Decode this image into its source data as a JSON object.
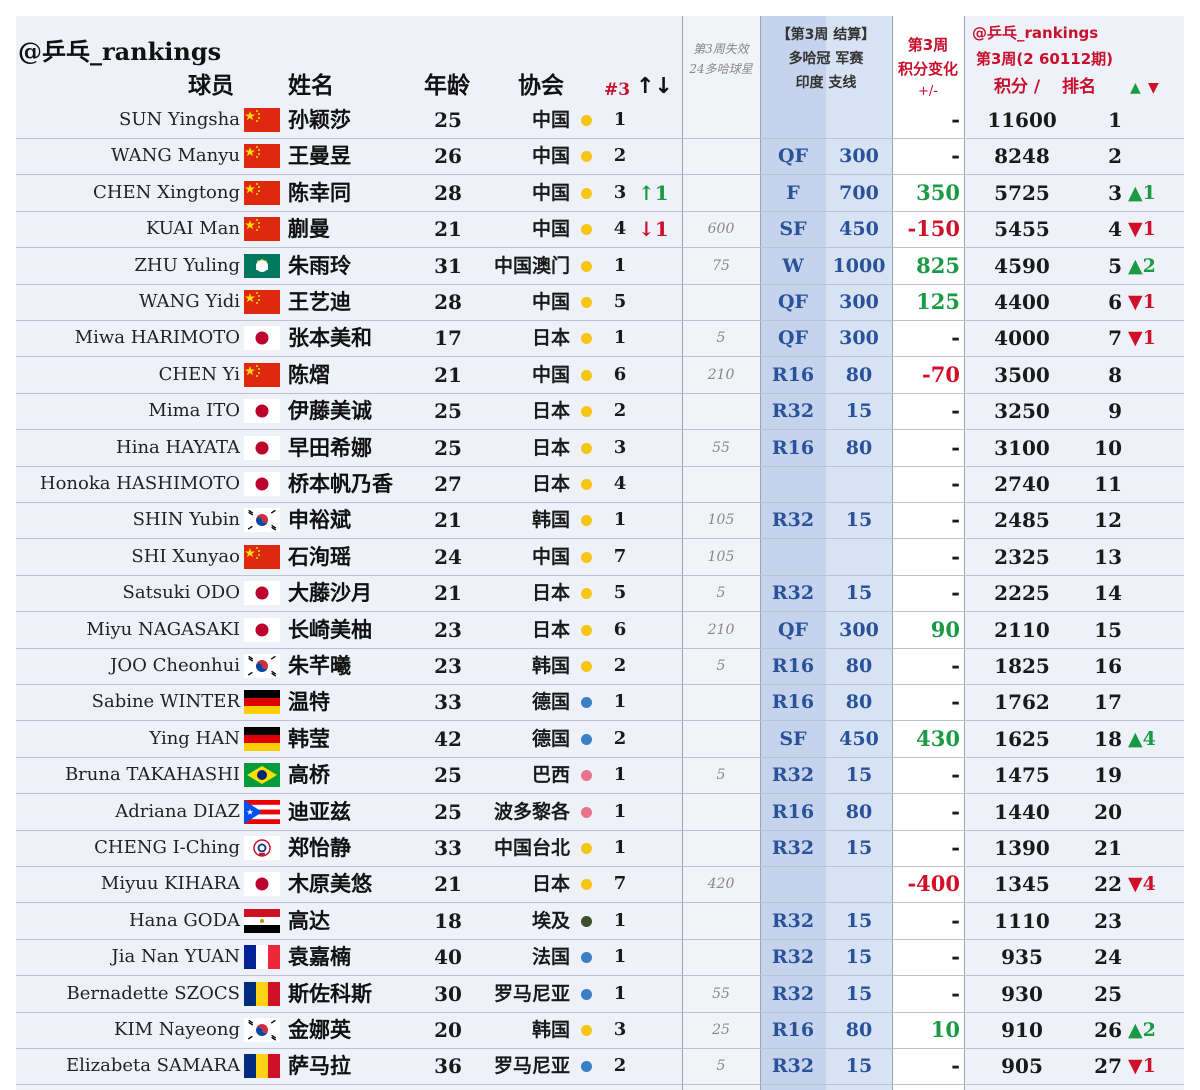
{
  "header": {
    "brand": "@乒乓_rankings",
    "col_player": "球员",
    "col_name": "姓名",
    "col_age": "年龄",
    "col_assoc": "协会",
    "col_rank3": "#3",
    "col_arrows": "↑↓",
    "lost_line1": "第3周失效",
    "lost_line2": "24多哈球星",
    "res_line1": "【第3周 结算】",
    "res_line2": "多哈冠 军赛",
    "res_line3": "印度 支线",
    "chg_line1": "第3周",
    "chg_line2": "积分变化",
    "chg_line3": "+/-",
    "tot_line1": "@乒乓_rankings",
    "tot_line2": "第3周(2 60112期)",
    "tot_points": "积分 /",
    "tot_rank": "排名",
    "tot_arrows_up": "▲",
    "tot_arrows_down": "▼"
  },
  "colors": {
    "accent_red": "#c8102e",
    "up_green": "#1a9a45",
    "down_red": "#d0102a",
    "result_blue": "#2a5298",
    "dot_yellow": "#f5c518",
    "dot_blue": "#3b7fc4",
    "dot_pink": "#e9738a",
    "dot_darkgreen": "#3e4f2f"
  },
  "rows": [
    {
      "en": "SUN Yingsha",
      "flag": "china",
      "cn": "孙颖莎",
      "age": "25",
      "assoc": "中国",
      "dot": "yellow",
      "rk": "1",
      "mv": "",
      "mvdir": "",
      "lost": "",
      "res": "",
      "rp": "",
      "chg": "-",
      "chgdir": "",
      "tot": "11600",
      "rank": "1",
      "trend": "",
      "trenddir": ""
    },
    {
      "en": "WANG Manyu",
      "flag": "china",
      "cn": "王曼昱",
      "age": "26",
      "assoc": "中国",
      "dot": "yellow",
      "rk": "2",
      "mv": "",
      "mvdir": "",
      "lost": "",
      "res": "QF",
      "rp": "300",
      "chg": "-",
      "chgdir": "",
      "tot": "8248",
      "rank": "2",
      "trend": "",
      "trenddir": ""
    },
    {
      "en": "CHEN Xingtong",
      "flag": "china",
      "cn": "陈幸同",
      "age": "28",
      "assoc": "中国",
      "dot": "yellow",
      "rk": "3",
      "mv": "↑1",
      "mvdir": "up",
      "lost": "",
      "res": "F",
      "rp": "700",
      "chg": "350",
      "chgdir": "up",
      "tot": "5725",
      "rank": "3",
      "trend": "▲1",
      "trenddir": "up"
    },
    {
      "en": "KUAI Man",
      "flag": "china",
      "cn": "蒯曼",
      "age": "21",
      "assoc": "中国",
      "dot": "yellow",
      "rk": "4",
      "mv": "↓1",
      "mvdir": "down",
      "lost": "600",
      "res": "SF",
      "rp": "450",
      "chg": "-150",
      "chgdir": "down",
      "tot": "5455",
      "rank": "4",
      "trend": "▼1",
      "trenddir": "down"
    },
    {
      "en": "ZHU Yuling",
      "flag": "macau",
      "cn": "朱雨玲",
      "age": "31",
      "assoc": "中国澳门",
      "dot": "yellow",
      "rk": "1",
      "mv": "",
      "mvdir": "",
      "lost": "75",
      "res": "W",
      "rp": "1000",
      "chg": "825",
      "chgdir": "up",
      "tot": "4590",
      "rank": "5",
      "trend": "▲2",
      "trenddir": "up"
    },
    {
      "en": "WANG Yidi",
      "flag": "china",
      "cn": "王艺迪",
      "age": "28",
      "assoc": "中国",
      "dot": "yellow",
      "rk": "5",
      "mv": "",
      "mvdir": "",
      "lost": "",
      "res": "QF",
      "rp": "300",
      "chg": "125",
      "chgdir": "up",
      "tot": "4400",
      "rank": "6",
      "trend": "▼1",
      "trenddir": "down"
    },
    {
      "en": "Miwa HARIMOTO",
      "flag": "japan",
      "cn": "张本美和",
      "age": "17",
      "assoc": "日本",
      "dot": "yellow",
      "rk": "1",
      "mv": "",
      "mvdir": "",
      "lost": "5",
      "res": "QF",
      "rp": "300",
      "chg": "-",
      "chgdir": "",
      "tot": "4000",
      "rank": "7",
      "trend": "▼1",
      "trenddir": "down"
    },
    {
      "en": "CHEN Yi",
      "flag": "china",
      "cn": "陈熠",
      "age": "21",
      "assoc": "中国",
      "dot": "yellow",
      "rk": "6",
      "mv": "",
      "mvdir": "",
      "lost": "210",
      "res": "R16",
      "rp": "80",
      "chg": "-70",
      "chgdir": "down",
      "tot": "3500",
      "rank": "8",
      "trend": "",
      "trenddir": ""
    },
    {
      "en": "Mima ITO",
      "flag": "japan",
      "cn": "伊藤美诚",
      "age": "25",
      "assoc": "日本",
      "dot": "yellow",
      "rk": "2",
      "mv": "",
      "mvdir": "",
      "lost": "",
      "res": "R32",
      "rp": "15",
      "chg": "-",
      "chgdir": "",
      "tot": "3250",
      "rank": "9",
      "trend": "",
      "trenddir": ""
    },
    {
      "en": "Hina HAYATA",
      "flag": "japan",
      "cn": "早田希娜",
      "age": "25",
      "assoc": "日本",
      "dot": "yellow",
      "rk": "3",
      "mv": "",
      "mvdir": "",
      "lost": "55",
      "res": "R16",
      "rp": "80",
      "chg": "-",
      "chgdir": "",
      "tot": "3100",
      "rank": "10",
      "trend": "",
      "trenddir": ""
    },
    {
      "en": "Honoka HASHIMOTO",
      "flag": "japan",
      "cn": "桥本帆乃香",
      "age": "27",
      "assoc": "日本",
      "dot": "yellow",
      "rk": "4",
      "mv": "",
      "mvdir": "",
      "lost": "",
      "res": "",
      "rp": "",
      "chg": "-",
      "chgdir": "",
      "tot": "2740",
      "rank": "11",
      "trend": "",
      "trenddir": ""
    },
    {
      "en": "SHIN Yubin",
      "flag": "korea",
      "cn": "申裕斌",
      "age": "21",
      "assoc": "韩国",
      "dot": "yellow",
      "rk": "1",
      "mv": "",
      "mvdir": "",
      "lost": "105",
      "res": "R32",
      "rp": "15",
      "chg": "-",
      "chgdir": "",
      "tot": "2485",
      "rank": "12",
      "trend": "",
      "trenddir": ""
    },
    {
      "en": "SHI Xunyao",
      "flag": "china",
      "cn": "石洵瑶",
      "age": "24",
      "assoc": "中国",
      "dot": "yellow",
      "rk": "7",
      "mv": "",
      "mvdir": "",
      "lost": "105",
      "res": "",
      "rp": "",
      "chg": "-",
      "chgdir": "",
      "tot": "2325",
      "rank": "13",
      "trend": "",
      "trenddir": ""
    },
    {
      "en": "Satsuki ODO",
      "flag": "japan",
      "cn": "大藤沙月",
      "age": "21",
      "assoc": "日本",
      "dot": "yellow",
      "rk": "5",
      "mv": "",
      "mvdir": "",
      "lost": "5",
      "res": "R32",
      "rp": "15",
      "chg": "-",
      "chgdir": "",
      "tot": "2225",
      "rank": "14",
      "trend": "",
      "trenddir": ""
    },
    {
      "en": "Miyu NAGASAKI",
      "flag": "japan",
      "cn": "长崎美柚",
      "age": "23",
      "assoc": "日本",
      "dot": "yellow",
      "rk": "6",
      "mv": "",
      "mvdir": "",
      "lost": "210",
      "res": "QF",
      "rp": "300",
      "chg": "90",
      "chgdir": "up",
      "tot": "2110",
      "rank": "15",
      "trend": "",
      "trenddir": ""
    },
    {
      "en": "JOO Cheonhui",
      "flag": "korea",
      "cn": "朱芊曦",
      "age": "23",
      "assoc": "韩国",
      "dot": "yellow",
      "rk": "2",
      "mv": "",
      "mvdir": "",
      "lost": "5",
      "res": "R16",
      "rp": "80",
      "chg": "-",
      "chgdir": "",
      "tot": "1825",
      "rank": "16",
      "trend": "",
      "trenddir": ""
    },
    {
      "en": "Sabine WINTER",
      "flag": "germany",
      "cn": "温特",
      "age": "33",
      "assoc": "德国",
      "dot": "blue",
      "rk": "1",
      "mv": "",
      "mvdir": "",
      "lost": "",
      "res": "R16",
      "rp": "80",
      "chg": "-",
      "chgdir": "",
      "tot": "1762",
      "rank": "17",
      "trend": "",
      "trenddir": ""
    },
    {
      "en": "Ying HAN",
      "flag": "germany",
      "cn": "韩莹",
      "age": "42",
      "assoc": "德国",
      "dot": "blue",
      "rk": "2",
      "mv": "",
      "mvdir": "",
      "lost": "",
      "res": "SF",
      "rp": "450",
      "chg": "430",
      "chgdir": "up",
      "tot": "1625",
      "rank": "18",
      "trend": "▲4",
      "trenddir": "up"
    },
    {
      "en": "Bruna TAKAHASHI",
      "flag": "brazil",
      "cn": "高桥",
      "age": "25",
      "assoc": "巴西",
      "dot": "pink",
      "rk": "1",
      "mv": "",
      "mvdir": "",
      "lost": "5",
      "res": "R32",
      "rp": "15",
      "chg": "-",
      "chgdir": "",
      "tot": "1475",
      "rank": "19",
      "trend": "",
      "trenddir": ""
    },
    {
      "en": "Adriana DIAZ",
      "flag": "puertorico",
      "cn": "迪亚兹",
      "age": "25",
      "assoc": "波多黎各",
      "dot": "pink",
      "rk": "1",
      "mv": "",
      "mvdir": "",
      "lost": "",
      "res": "R16",
      "rp": "80",
      "chg": "-",
      "chgdir": "",
      "tot": "1440",
      "rank": "20",
      "trend": "",
      "trenddir": ""
    },
    {
      "en": "CHENG I-Ching",
      "flag": "tpe",
      "cn": "郑怡静",
      "age": "33",
      "assoc": "中国台北",
      "dot": "yellow",
      "rk": "1",
      "mv": "",
      "mvdir": "",
      "lost": "",
      "res": "R32",
      "rp": "15",
      "chg": "-",
      "chgdir": "",
      "tot": "1390",
      "rank": "21",
      "trend": "",
      "trenddir": ""
    },
    {
      "en": "Miyuu KIHARA",
      "flag": "japan",
      "cn": "木原美悠",
      "age": "21",
      "assoc": "日本",
      "dot": "yellow",
      "rk": "7",
      "mv": "",
      "mvdir": "",
      "lost": "420",
      "res": "",
      "rp": "",
      "chg": "-400",
      "chgdir": "down",
      "tot": "1345",
      "rank": "22",
      "trend": "▼4",
      "trenddir": "down"
    },
    {
      "en": "Hana GODA",
      "flag": "egypt",
      "cn": "高达",
      "age": "18",
      "assoc": "埃及",
      "dot": "darkgreen",
      "rk": "1",
      "mv": "",
      "mvdir": "",
      "lost": "",
      "res": "R32",
      "rp": "15",
      "chg": "-",
      "chgdir": "",
      "tot": "1110",
      "rank": "23",
      "trend": "",
      "trenddir": ""
    },
    {
      "en": "Jia Nan YUAN",
      "flag": "france",
      "cn": "袁嘉楠",
      "age": "40",
      "assoc": "法国",
      "dot": "blue",
      "rk": "1",
      "mv": "",
      "mvdir": "",
      "lost": "",
      "res": "R32",
      "rp": "15",
      "chg": "-",
      "chgdir": "",
      "tot": "935",
      "rank": "24",
      "trend": "",
      "trenddir": ""
    },
    {
      "en": "Bernadette SZOCS",
      "flag": "romania",
      "cn": "斯佐科斯",
      "age": "30",
      "assoc": "罗马尼亚",
      "dot": "blue",
      "rk": "1",
      "mv": "",
      "mvdir": "",
      "lost": "55",
      "res": "R32",
      "rp": "15",
      "chg": "-",
      "chgdir": "",
      "tot": "930",
      "rank": "25",
      "trend": "",
      "trenddir": ""
    },
    {
      "en": "KIM Nayeong",
      "flag": "korea",
      "cn": "金娜英",
      "age": "20",
      "assoc": "韩国",
      "dot": "yellow",
      "rk": "3",
      "mv": "",
      "mvdir": "",
      "lost": "25",
      "res": "R16",
      "rp": "80",
      "chg": "10",
      "chgdir": "up",
      "tot": "910",
      "rank": "26",
      "trend": "▲2",
      "trenddir": "up"
    },
    {
      "en": "Elizabeta SAMARA",
      "flag": "romania",
      "cn": "萨马拉",
      "age": "36",
      "assoc": "罗马尼亚",
      "dot": "blue",
      "rk": "2",
      "mv": "",
      "mvdir": "",
      "lost": "5",
      "res": "R32",
      "rp": "15",
      "chg": "-",
      "chgdir": "",
      "tot": "905",
      "rank": "27",
      "trend": "▼1",
      "trenddir": "down"
    }
  ]
}
